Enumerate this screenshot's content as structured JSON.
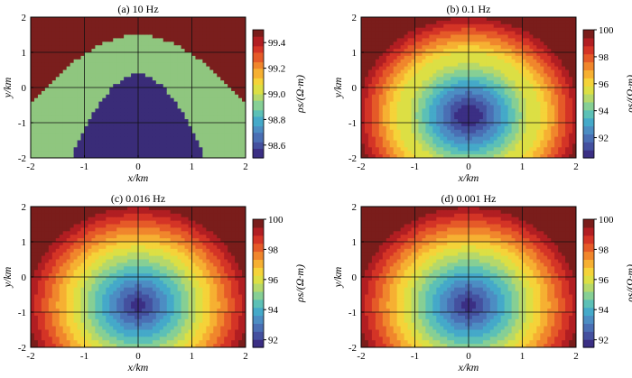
{
  "chart_data": [
    {
      "type": "heatmap",
      "title": "(a) 10 Hz",
      "xlabel": "x/km",
      "ylabel": "y/km",
      "xlim": [
        -2,
        2
      ],
      "ylim": [
        -2,
        2
      ],
      "xticks": [
        "-2",
        "-1",
        "0",
        "1",
        "2"
      ],
      "yticks": [
        "-2",
        "-1",
        "0",
        "1",
        "2"
      ],
      "grid": true,
      "colorbar": {
        "label": "ρs/(Ω·m)",
        "range": [
          98.5,
          99.5
        ],
        "ticks": [
          "99.4",
          "99.2",
          "99.0",
          "98.8",
          "98.6"
        ],
        "tick_values": [
          99.4,
          99.2,
          99.0,
          98.8,
          98.6
        ]
      },
      "field": {
        "min": 98.6,
        "max": 99.5,
        "center": [
          0,
          -0.8
        ],
        "shape": "arch",
        "levels": 3
      }
    },
    {
      "type": "heatmap",
      "title": "(b) 0.1 Hz",
      "xlabel": "x/km",
      "ylabel": "y/km",
      "xlim": [
        -2,
        2
      ],
      "ylim": [
        -2,
        2
      ],
      "xticks": [
        "-2",
        "-1",
        "0",
        "1",
        "2"
      ],
      "yticks": [
        "-2",
        "-1",
        "0",
        "1",
        "2"
      ],
      "grid": true,
      "colorbar": {
        "label": "ρs/(Ω·m)",
        "range": [
          90.5,
          100
        ],
        "ticks": [
          "100",
          "98",
          "96",
          "94",
          "92"
        ],
        "tick_values": [
          100,
          98,
          96,
          94,
          92
        ]
      },
      "field": {
        "min": 91,
        "max": 100,
        "center": [
          0,
          -0.8
        ],
        "shape": "oval",
        "levels": 18
      }
    },
    {
      "type": "heatmap",
      "title": "(c) 0.016 Hz",
      "xlabel": "x/km",
      "ylabel": "y/km",
      "xlim": [
        -2,
        2
      ],
      "ylim": [
        -2,
        2
      ],
      "xticks": [
        "-2",
        "-1",
        "0",
        "1",
        "2"
      ],
      "yticks": [
        "-2",
        "-1",
        "0",
        "1",
        "2"
      ],
      "grid": true,
      "colorbar": {
        "label": "ρs/(Ω·m)",
        "range": [
          91.5,
          100
        ],
        "ticks": [
          "100",
          "98",
          "96",
          "94",
          "92"
        ],
        "tick_values": [
          100,
          98,
          96,
          94,
          92
        ]
      },
      "field": {
        "min": 92,
        "max": 100,
        "center": [
          0,
          -0.8
        ],
        "shape": "oval",
        "levels": 16
      }
    },
    {
      "type": "heatmap",
      "title": "(d) 0.001 Hz",
      "xlabel": "x/km",
      "ylabel": "y/km",
      "xlim": [
        -2,
        2
      ],
      "ylim": [
        -2,
        2
      ],
      "xticks": [
        "-2",
        "-1",
        "0",
        "1",
        "2"
      ],
      "yticks": [
        "-2",
        "-1",
        "0",
        "1",
        "2"
      ],
      "grid": true,
      "colorbar": {
        "label": "ρs/(Ω·m)",
        "range": [
          91.5,
          100
        ],
        "ticks": [
          "100",
          "98",
          "96",
          "94",
          "92"
        ],
        "tick_values": [
          100,
          98,
          96,
          94,
          92
        ]
      },
      "field": {
        "min": 92,
        "max": 100,
        "center": [
          0,
          -0.8
        ],
        "shape": "oval",
        "levels": 16
      }
    }
  ],
  "colormap": [
    "#3b2f84",
    "#44509f",
    "#4a6fb4",
    "#4c8dc3",
    "#45a9c9",
    "#5cc0b6",
    "#86cf95",
    "#b5d86b",
    "#dcdf44",
    "#f5d339",
    "#f6b032",
    "#f0862c",
    "#e55a28",
    "#d43426",
    "#b11e22",
    "#7a1d1b"
  ],
  "colormap_10hz": [
    "#3a2c78",
    "#8fc67f",
    "#7a1e1d"
  ]
}
